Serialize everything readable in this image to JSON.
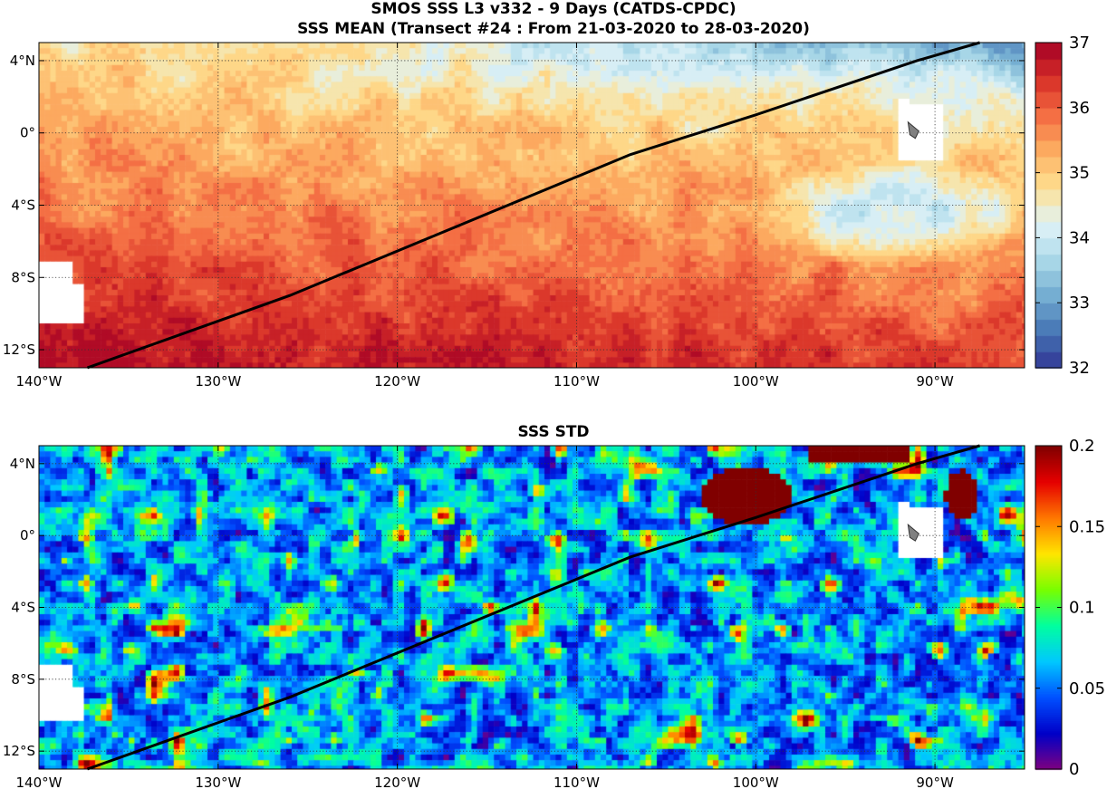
{
  "header": {
    "line1": "SMOS SSS L3 v332 - 9 Days (CATDS-CPDC)",
    "line2": "SSS MEAN (Transect #24 : From 21-03-2020 to 28-03-2020)"
  },
  "chart_data": [
    {
      "type": "heatmap",
      "title": "SSS MEAN",
      "x_axis": {
        "range": [
          -140,
          -85
        ],
        "ticks": [
          -140,
          -130,
          -120,
          -110,
          -100,
          -90
        ],
        "tick_labels": [
          "140°W",
          "130°W",
          "120°W",
          "110°W",
          "100°W",
          "90°W"
        ]
      },
      "y_axis": {
        "range": [
          -13,
          5
        ],
        "ticks": [
          4,
          0,
          -4,
          -8,
          -12
        ],
        "tick_labels": [
          "4°N",
          "0°",
          "4°S",
          "8°S",
          "12°S"
        ]
      },
      "colorbar": {
        "range": [
          32,
          37
        ],
        "ticks": [
          32,
          33,
          34,
          35,
          36,
          37
        ],
        "tick_labels": [
          "32",
          "33",
          "34",
          "35",
          "36",
          "37"
        ],
        "levels": 20,
        "colormap": "RdYlBu_r"
      },
      "grid": "dotted",
      "transect_line": [
        [
          -137.3,
          -13
        ],
        [
          -126,
          -9
        ],
        [
          -107,
          -1.2
        ],
        [
          -100,
          1
        ],
        [
          -91,
          4
        ],
        [
          -87.5,
          5
        ]
      ],
      "land_mask": [
        "Galapagos Islands"
      ]
    },
    {
      "type": "heatmap",
      "title": "SSS STD",
      "x_axis": {
        "range": [
          -140,
          -85
        ],
        "ticks": [
          -140,
          -130,
          -120,
          -110,
          -100,
          -90
        ],
        "tick_labels": [
          "140°W",
          "130°W",
          "120°W",
          "110°W",
          "100°W",
          "90°W"
        ]
      },
      "y_axis": {
        "range": [
          -13,
          5
        ],
        "ticks": [
          4,
          0,
          -4,
          -8,
          -12
        ],
        "tick_labels": [
          "4°N",
          "0°",
          "4°S",
          "8°S",
          "12°S"
        ]
      },
      "colorbar": {
        "range": [
          0,
          0.2
        ],
        "ticks": [
          0,
          0.05,
          0.1,
          0.15,
          0.2
        ],
        "tick_labels": [
          "0",
          "0.05",
          "0.1",
          "0.15",
          "0.2"
        ],
        "colormap": "jet"
      },
      "grid": "dotted",
      "transect_line": [
        [
          -137.3,
          -13
        ],
        [
          -126,
          -9
        ],
        [
          -107,
          -1.2
        ],
        [
          -100,
          1
        ],
        [
          -91,
          4
        ],
        [
          -87.5,
          5
        ]
      ],
      "land_mask": [
        "Galapagos Islands"
      ]
    }
  ]
}
